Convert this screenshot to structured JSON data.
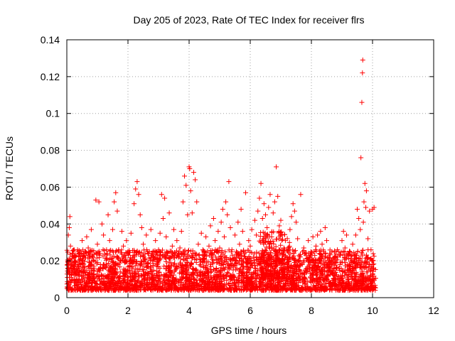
{
  "chart_data": {
    "type": "scatter",
    "title": "Day 205 of 2023, Rate Of TEC Index for receiver flrs",
    "xlabel": "GPS time / hours",
    "ylabel": "ROTI / TECUs",
    "xlim": [
      0,
      12
    ],
    "ylim": [
      0,
      0.14
    ],
    "xticks": [
      0,
      2,
      4,
      6,
      8,
      10,
      12
    ],
    "yticks": [
      0,
      0.02,
      0.04,
      0.06,
      0.08,
      0.1,
      0.12,
      0.14
    ],
    "xtick_labels": [
      "0",
      "2",
      "4",
      "6",
      "8",
      "10",
      "12"
    ],
    "ytick_labels": [
      "0",
      "0.02",
      "0.04",
      "0.06",
      "0.08",
      "0.1",
      "0.12",
      "0.14"
    ],
    "grid": true,
    "marker": "+",
    "marker_color": "#ff0000",
    "series": [
      {
        "name": "ROTI",
        "points": [
          [
            0.02,
            0.011
          ],
          [
            0.05,
            0.034
          ],
          [
            0.08,
            0.038
          ],
          [
            0.1,
            0.044
          ],
          [
            0.12,
            0.028
          ],
          [
            0.15,
            0.009
          ],
          [
            0.2,
            0.016
          ],
          [
            0.25,
            0.022
          ],
          [
            0.3,
            0.013
          ],
          [
            0.35,
            0.026
          ],
          [
            0.4,
            0.012
          ],
          [
            0.45,
            0.018
          ],
          [
            0.5,
            0.031
          ],
          [
            0.55,
            0.024
          ],
          [
            0.6,
            0.014
          ],
          [
            0.65,
            0.033
          ],
          [
            0.7,
            0.027
          ],
          [
            0.75,
            0.019
          ],
          [
            0.8,
            0.037
          ],
          [
            0.85,
            0.022
          ],
          [
            0.9,
            0.015
          ],
          [
            0.95,
            0.053
          ],
          [
            1.0,
            0.029
          ],
          [
            1.05,
            0.052
          ],
          [
            1.1,
            0.018
          ],
          [
            1.15,
            0.04
          ],
          [
            1.2,
            0.034
          ],
          [
            1.25,
            0.012
          ],
          [
            1.3,
            0.026
          ],
          [
            1.35,
            0.045
          ],
          [
            1.4,
            0.031
          ],
          [
            1.45,
            0.021
          ],
          [
            1.5,
            0.037
          ],
          [
            1.55,
            0.052
          ],
          [
            1.6,
            0.057
          ],
          [
            1.65,
            0.047
          ],
          [
            1.7,
            0.026
          ],
          [
            1.75,
            0.014
          ],
          [
            1.8,
            0.036
          ],
          [
            1.85,
            0.028
          ],
          [
            1.9,
            0.019
          ],
          [
            1.95,
            0.031
          ],
          [
            2.0,
            0.024
          ],
          [
            2.05,
            0.017
          ],
          [
            2.1,
            0.035
          ],
          [
            2.15,
            0.012
          ],
          [
            2.2,
            0.051
          ],
          [
            2.25,
            0.059
          ],
          [
            2.3,
            0.063
          ],
          [
            2.35,
            0.056
          ],
          [
            2.4,
            0.045
          ],
          [
            2.45,
            0.038
          ],
          [
            2.5,
            0.029
          ],
          [
            2.55,
            0.021
          ],
          [
            2.6,
            0.034
          ],
          [
            2.65,
            0.017
          ],
          [
            2.7,
            0.025
          ],
          [
            2.75,
            0.037
          ],
          [
            2.8,
            0.013
          ],
          [
            2.85,
            0.022
          ],
          [
            2.9,
            0.031
          ],
          [
            2.95,
            0.018
          ],
          [
            3.0,
            0.026
          ],
          [
            3.05,
            0.035
          ],
          [
            3.1,
            0.056
          ],
          [
            3.15,
            0.043
          ],
          [
            3.2,
            0.054
          ],
          [
            3.25,
            0.033
          ],
          [
            3.3,
            0.024
          ],
          [
            3.35,
            0.046
          ],
          [
            3.4,
            0.019
          ],
          [
            3.45,
            0.028
          ],
          [
            3.5,
            0.037
          ],
          [
            3.55,
            0.015
          ],
          [
            3.6,
            0.031
          ],
          [
            3.65,
            0.022
          ],
          [
            3.7,
            0.027
          ],
          [
            3.75,
            0.036
          ],
          [
            3.8,
            0.052
          ],
          [
            3.85,
            0.066
          ],
          [
            3.9,
            0.061
          ],
          [
            3.95,
            0.045
          ],
          [
            4.0,
            0.071
          ],
          [
            4.02,
            0.07
          ],
          [
            4.05,
            0.058
          ],
          [
            4.1,
            0.046
          ],
          [
            4.15,
            0.068
          ],
          [
            4.2,
            0.064
          ],
          [
            4.25,
            0.052
          ],
          [
            4.3,
            0.029
          ],
          [
            4.35,
            0.018
          ],
          [
            4.4,
            0.035
          ],
          [
            4.45,
            0.026
          ],
          [
            4.5,
            0.021
          ],
          [
            4.55,
            0.033
          ],
          [
            4.6,
            0.016
          ],
          [
            4.65,
            0.028
          ],
          [
            4.7,
            0.039
          ],
          [
            4.75,
            0.024
          ],
          [
            4.8,
            0.043
          ],
          [
            4.85,
            0.031
          ],
          [
            4.9,
            0.019
          ],
          [
            4.95,
            0.036
          ],
          [
            5.0,
            0.027
          ],
          [
            5.05,
            0.041
          ],
          [
            5.1,
            0.048
          ],
          [
            5.15,
            0.033
          ],
          [
            5.2,
            0.052
          ],
          [
            5.25,
            0.045
          ],
          [
            5.3,
            0.063
          ],
          [
            5.35,
            0.038
          ],
          [
            5.4,
            0.026
          ],
          [
            5.45,
            0.017
          ],
          [
            5.5,
            0.034
          ],
          [
            5.55,
            0.022
          ],
          [
            5.6,
            0.041
          ],
          [
            5.65,
            0.029
          ],
          [
            5.7,
            0.048
          ],
          [
            5.75,
            0.036
          ],
          [
            5.8,
            0.024
          ],
          [
            5.85,
            0.057
          ],
          [
            5.9,
            0.019
          ],
          [
            5.95,
            0.031
          ],
          [
            6.0,
            0.028
          ],
          [
            6.05,
            0.037
          ],
          [
            6.1,
            0.022
          ],
          [
            6.15,
            0.042
          ],
          [
            6.2,
            0.034
          ],
          [
            6.25,
            0.047
          ],
          [
            6.3,
            0.054
          ],
          [
            6.35,
            0.062
          ],
          [
            6.4,
            0.043
          ],
          [
            6.45,
            0.051
          ],
          [
            6.5,
            0.045
          ],
          [
            6.55,
            0.038
          ],
          [
            6.6,
            0.049
          ],
          [
            6.65,
            0.056
          ],
          [
            6.7,
            0.033
          ],
          [
            6.75,
            0.046
          ],
          [
            6.8,
            0.052
          ],
          [
            6.85,
            0.071
          ],
          [
            6.9,
            0.055
          ],
          [
            6.95,
            0.039
          ],
          [
            7.0,
            0.042
          ],
          [
            7.05,
            0.034
          ],
          [
            7.1,
            0.027
          ],
          [
            7.15,
            0.031
          ],
          [
            7.2,
            0.019
          ],
          [
            7.25,
            0.026
          ],
          [
            7.3,
            0.037
          ],
          [
            7.35,
            0.044
          ],
          [
            7.4,
            0.051
          ],
          [
            7.45,
            0.047
          ],
          [
            7.5,
            0.041
          ],
          [
            7.55,
            0.032
          ],
          [
            7.6,
            0.023
          ],
          [
            7.65,
            0.056
          ],
          [
            7.7,
            0.018
          ],
          [
            7.75,
            0.027
          ],
          [
            7.8,
            0.015
          ],
          [
            7.85,
            0.021
          ],
          [
            7.9,
            0.031
          ],
          [
            7.95,
            0.019
          ],
          [
            8.0,
            0.024
          ],
          [
            8.05,
            0.033
          ],
          [
            8.1,
            0.017
          ],
          [
            8.15,
            0.028
          ],
          [
            8.2,
            0.034
          ],
          [
            8.25,
            0.021
          ],
          [
            8.3,
            0.036
          ],
          [
            8.35,
            0.029
          ],
          [
            8.4,
            0.025
          ],
          [
            8.45,
            0.038
          ],
          [
            8.5,
            0.031
          ],
          [
            8.55,
            0.018
          ],
          [
            8.6,
            0.024
          ],
          [
            8.65,
            0.014
          ],
          [
            8.7,
            0.021
          ],
          [
            8.75,
            0.012
          ],
          [
            8.8,
            0.019
          ],
          [
            8.85,
            0.026
          ],
          [
            8.9,
            0.016
          ],
          [
            8.95,
            0.023
          ],
          [
            9.0,
            0.031
          ],
          [
            9.05,
            0.036
          ],
          [
            9.1,
            0.027
          ],
          [
            9.15,
            0.034
          ],
          [
            9.2,
            0.024
          ],
          [
            9.25,
            0.018
          ],
          [
            9.3,
            0.021
          ],
          [
            9.35,
            0.029
          ],
          [
            9.4,
            0.015
          ],
          [
            9.45,
            0.034
          ],
          [
            9.5,
            0.048
          ],
          [
            9.55,
            0.043
          ],
          [
            9.6,
            0.037
          ],
          [
            9.62,
            0.076
          ],
          [
            9.65,
            0.106
          ],
          [
            9.67,
            0.122
          ],
          [
            9.68,
            0.129
          ],
          [
            9.7,
            0.041
          ],
          [
            9.72,
            0.052
          ],
          [
            9.75,
            0.062
          ],
          [
            9.78,
            0.049
          ],
          [
            9.8,
            0.058
          ],
          [
            9.85,
            0.032
          ],
          [
            9.9,
            0.047
          ],
          [
            9.95,
            0.026
          ],
          [
            10.0,
            0.048
          ],
          [
            10.05,
            0.049
          ]
        ]
      }
    ],
    "dense_band": [
      {
        "x_from": 0.0,
        "x_to": 10.1,
        "y_low": 0.004,
        "y_high": 0.026,
        "count_per_hour": 320
      },
      {
        "x_from": 6.3,
        "x_to": 7.3,
        "y_low": 0.01,
        "y_high": 0.036,
        "count_per_hour": 220
      }
    ]
  }
}
